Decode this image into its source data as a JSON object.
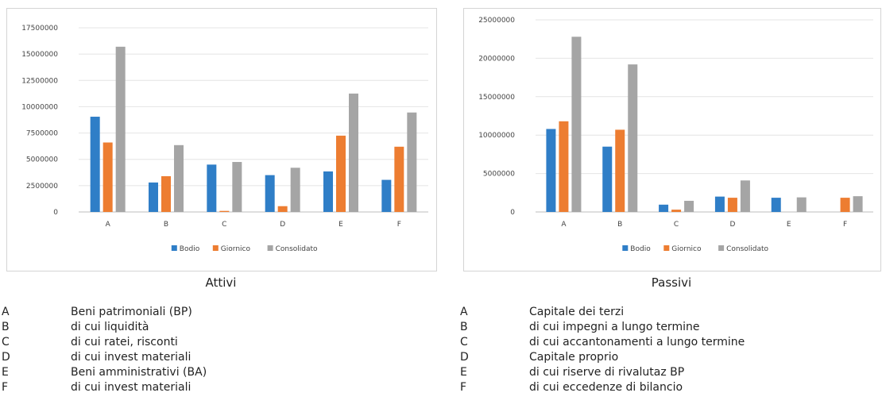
{
  "chart_data": [
    {
      "type": "bar",
      "caption": "Attivi",
      "categories": [
        "A",
        "B",
        "C",
        "D",
        "E",
        "F"
      ],
      "series": [
        {
          "name": "Bodio",
          "color": "#2f7ec7",
          "values": [
            9050000,
            2800000,
            4500000,
            3500000,
            3850000,
            3050000
          ]
        },
        {
          "name": "Giornico",
          "color": "#ed7d31",
          "values": [
            6600000,
            3400000,
            100000,
            550000,
            7250000,
            6200000
          ]
        },
        {
          "name": "Consolidato",
          "color": "#a5a5a5",
          "values": [
            15700000,
            6350000,
            4750000,
            4200000,
            11250000,
            9450000
          ]
        }
      ],
      "yticks": [
        "0",
        "2500000",
        "5000000",
        "7500000",
        "10000000",
        "12500000",
        "15000000",
        "17500000"
      ],
      "ylim": [
        0,
        17500000
      ],
      "grid": true,
      "legend": "bottom",
      "descriptions": [
        {
          "letter": "A",
          "text": "Beni patrimoniali (BP)"
        },
        {
          "letter": "B",
          "text": "di cui liquidità"
        },
        {
          "letter": "C",
          "text": "di cui ratei, risconti"
        },
        {
          "letter": "D",
          "text": "di cui invest materiali"
        },
        {
          "letter": "E",
          "text": "Beni amministrativi (BA)"
        },
        {
          "letter": "F",
          "text": "di cui invest materiali"
        }
      ]
    },
    {
      "type": "bar",
      "caption": "Passivi",
      "categories": [
        "A",
        "B",
        "C",
        "D",
        "E",
        "F"
      ],
      "series": [
        {
          "name": "Bodio",
          "color": "#2f7ec7",
          "values": [
            10800000,
            8500000,
            950000,
            2000000,
            1850000,
            0
          ]
        },
        {
          "name": "Giornico",
          "color": "#ed7d31",
          "values": [
            11800000,
            10700000,
            300000,
            1850000,
            0,
            1850000
          ]
        },
        {
          "name": "Consolidato",
          "color": "#a5a5a5",
          "values": [
            22800000,
            19200000,
            1450000,
            4100000,
            1900000,
            2050000
          ]
        }
      ],
      "yticks": [
        "0",
        "5000000",
        "10000000",
        "15000000",
        "20000000",
        "25000000"
      ],
      "ylim": [
        0,
        25000000
      ],
      "grid": true,
      "legend": "bottom",
      "descriptions": [
        {
          "letter": "A",
          "text": "Capitale dei terzi"
        },
        {
          "letter": "B",
          "text": "di cui impegni a lungo termine"
        },
        {
          "letter": "C",
          "text": "di cui accantonamenti a lungo termine"
        },
        {
          "letter": "D",
          "text": "Capitale proprio"
        },
        {
          "letter": "E",
          "text": "di cui riserve di rivalutaz BP"
        },
        {
          "letter": "F",
          "text": "di cui eccedenze di bilancio"
        }
      ]
    }
  ]
}
